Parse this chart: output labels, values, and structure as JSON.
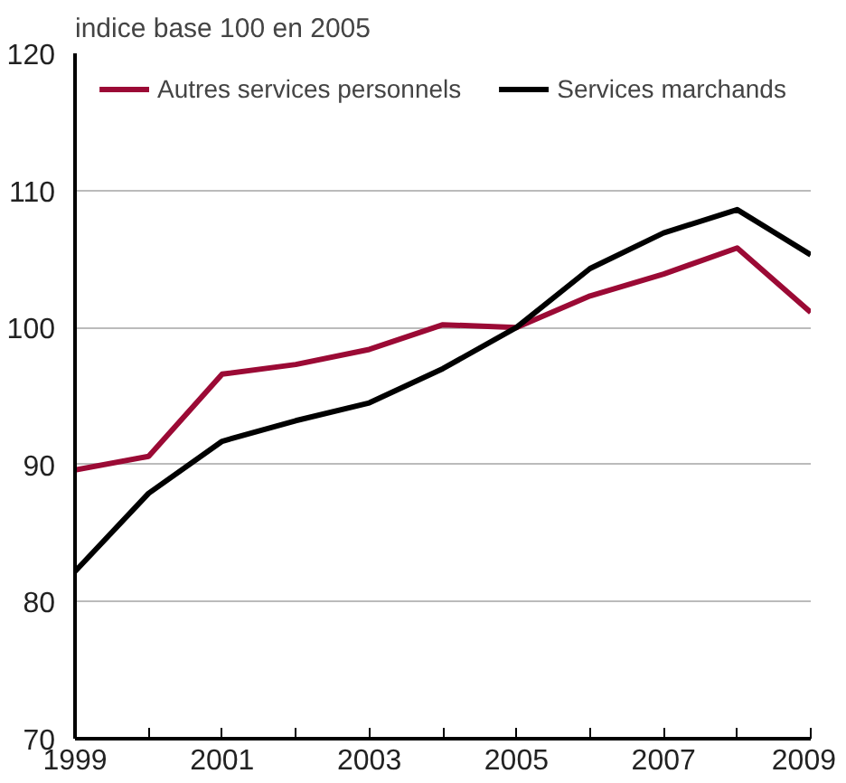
{
  "chart_data": {
    "type": "line",
    "title": "indice base 100 en 2005",
    "x": [
      1999,
      2000,
      2001,
      2002,
      2003,
      2004,
      2005,
      2006,
      2007,
      2008,
      2009
    ],
    "series": [
      {
        "name": "Autres services personnels",
        "color": "#9b0a35",
        "values": [
          89.6,
          90.6,
          96.6,
          97.3,
          98.4,
          100.2,
          100.0,
          102.3,
          103.9,
          105.8,
          101.1
        ]
      },
      {
        "name": "Services marchands",
        "color": "#000000",
        "values": [
          82.2,
          87.9,
          91.7,
          93.2,
          94.5,
          97.0,
          100.0,
          104.3,
          106.9,
          108.6,
          105.3
        ]
      }
    ],
    "xlim": [
      1999,
      2009
    ],
    "xticks": [
      1999,
      {
        "value": 2000,
        "label": null
      },
      2001,
      {
        "value": 2002,
        "label": null
      },
      2003,
      {
        "value": 2004,
        "label": null
      },
      2005,
      {
        "value": 2006,
        "label": null
      },
      2007,
      {
        "value": 2008,
        "label": null
      },
      2009
    ],
    "ylim": [
      70,
      120
    ],
    "yticks": [
      70,
      80,
      90,
      100,
      110,
      120
    ],
    "grid": "y",
    "legend": "top",
    "marker": "none",
    "line_style": "solid"
  }
}
